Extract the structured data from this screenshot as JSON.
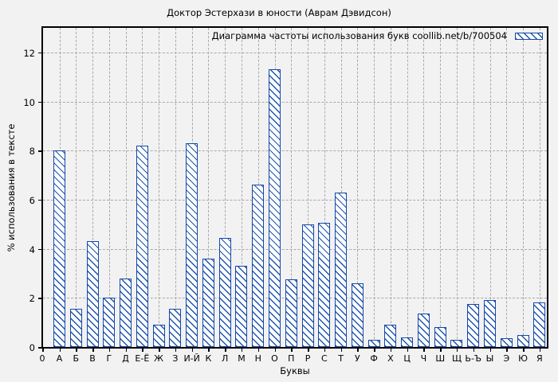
{
  "colors": {
    "figure_background": "#f2f2f2",
    "plot_border": "#000000",
    "grid": "#a9a9a9",
    "bar_border": "#1547a8",
    "bar_hatch": "#1d54b0",
    "bar_fill": "#ffffff",
    "text": "#000000"
  },
  "chart_data": {
    "type": "bar",
    "title": "Доктор Эстерхази в юности (Аврам Дэвидсон)",
    "legend_label": "Диаграмма частоты использования букв coollib.net/b/700504",
    "legend_position": "top-right-inside",
    "xlabel": "Буквы",
    "ylabel": "% использования в тексте",
    "x_origin_label": "0",
    "grid": "dashed",
    "ylim": [
      0,
      13
    ],
    "yticks": [
      0,
      2,
      4,
      6,
      8,
      10,
      12
    ],
    "categories": [
      "А",
      "Б",
      "В",
      "Г",
      "Д",
      "Е-Ё",
      "Ж",
      "З",
      "И-Й",
      "К",
      "Л",
      "М",
      "Н",
      "О",
      "П",
      "Р",
      "С",
      "Т",
      "У",
      "Ф",
      "Х",
      "Ц",
      "Ч",
      "Ш",
      "Щ",
      "Ь-Ъ",
      "Ы",
      "Э",
      "Ю",
      "Я"
    ],
    "values": [
      8.0,
      1.55,
      4.3,
      2.0,
      2.8,
      8.2,
      0.9,
      1.55,
      8.3,
      3.6,
      4.45,
      3.3,
      6.6,
      11.3,
      2.75,
      5.0,
      5.05,
      6.3,
      2.6,
      0.3,
      0.9,
      0.4,
      1.35,
      0.8,
      0.3,
      1.75,
      1.9,
      0.35,
      0.5,
      1.8
    ]
  }
}
